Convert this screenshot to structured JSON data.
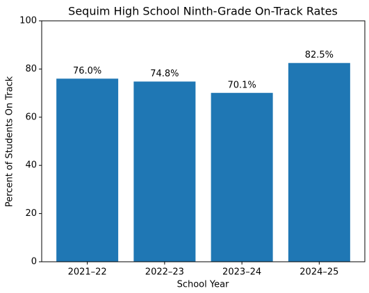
{
  "chart_data": {
    "type": "bar",
    "title": "Sequim High School Ninth-Grade On-Track Rates",
    "x_label": "School Year",
    "y_label": "Percent of Students On Track",
    "categories": [
      "2021–22",
      "2022–23",
      "2023–24",
      "2024–25"
    ],
    "values": [
      76.0,
      74.8,
      70.1,
      82.5
    ],
    "value_labels": [
      "76.0%",
      "74.8%",
      "70.1%",
      "82.5%"
    ],
    "color": "#1f77b4",
    "ylim": [
      0,
      100
    ],
    "yticks": [
      0,
      20,
      40,
      60,
      80,
      100
    ],
    "grid": false
  }
}
